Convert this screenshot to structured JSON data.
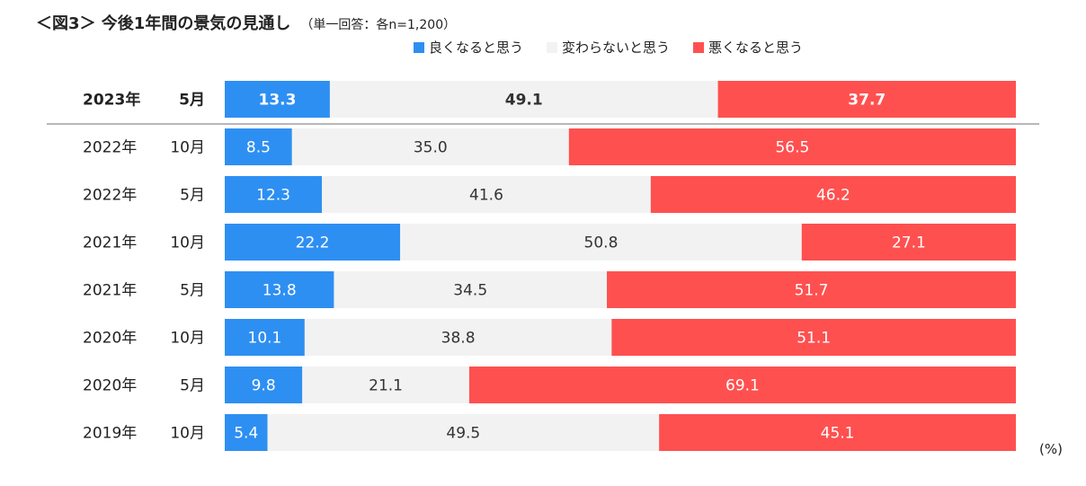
{
  "title": "＜図3＞ 今後1年間の景気の見通し",
  "subtitle": "（単一回答：各n=1,200）",
  "unit": "(%)",
  "colors": {
    "good": "#2e8ff2",
    "same": "#f2f2f2",
    "bad": "#ff5050"
  },
  "chart_data": {
    "type": "bar",
    "orientation": "horizontal",
    "stacked": "100%",
    "categories": [
      "2023年　5月",
      "2022年　10月",
      "2022年　5月",
      "2021年　10月",
      "2021年　5月",
      "2020年　10月",
      "2020年　5月",
      "2019年　10月"
    ],
    "category_years": [
      "2023年",
      "2022年",
      "2022年",
      "2021年",
      "2021年",
      "2020年",
      "2020年",
      "2019年"
    ],
    "category_months": [
      "5月",
      "10月",
      "5月",
      "10月",
      "5月",
      "10月",
      "5月",
      "10月"
    ],
    "highlight_index": 0,
    "series": [
      {
        "name": "良くなると思う",
        "values": [
          13.3,
          8.5,
          12.3,
          22.2,
          13.8,
          10.1,
          9.8,
          5.4
        ]
      },
      {
        "name": "変わらないと思う",
        "values": [
          49.1,
          35.0,
          41.6,
          50.8,
          34.5,
          38.8,
          21.1,
          49.5
        ]
      },
      {
        "name": "悪くなると思う",
        "values": [
          37.7,
          56.5,
          46.2,
          27.1,
          51.7,
          51.1,
          69.1,
          45.1
        ]
      }
    ],
    "legend_position": "top",
    "grid": false
  }
}
